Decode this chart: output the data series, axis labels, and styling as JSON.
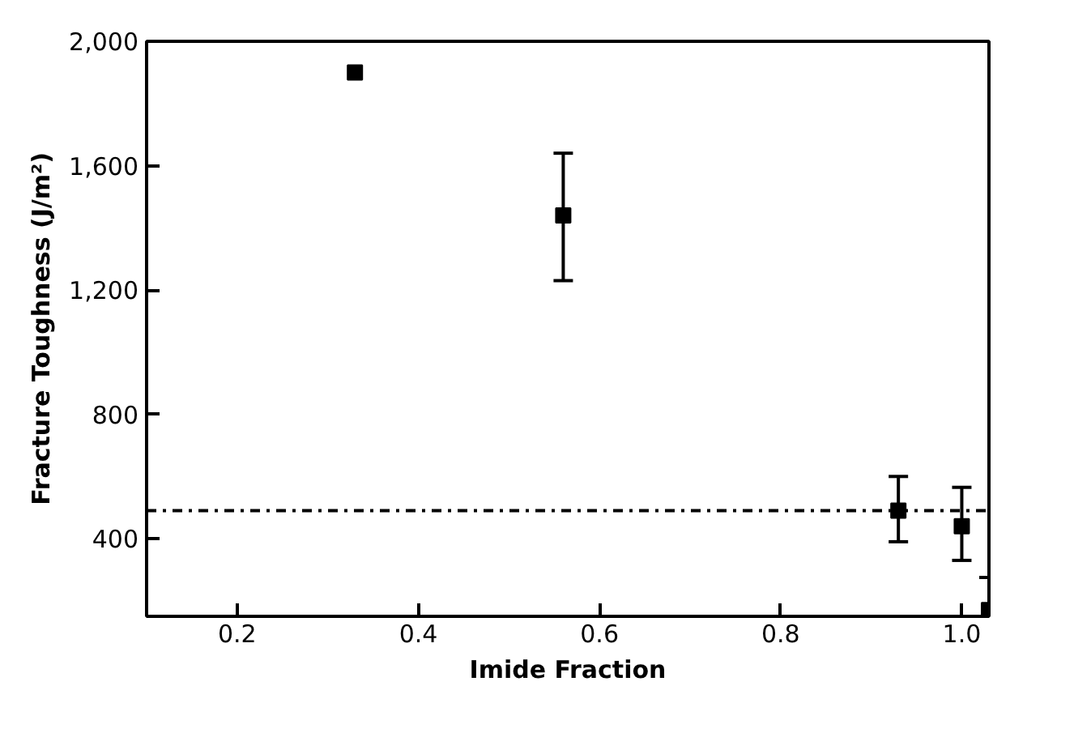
{
  "chart_data": {
    "type": "scatter",
    "xlabel": "Imide Fraction",
    "ylabel": "Fracture Toughness (J/m²)",
    "x": [
      0.33,
      0.56,
      0.93,
      1.0,
      1.03
    ],
    "values": [
      1900,
      1440,
      490,
      440,
      170
    ],
    "errors": [
      null,
      [
        1230,
        1640
      ],
      [
        390,
        600
      ],
      [
        330,
        565
      ],
      [
        150,
        275
      ]
    ],
    "color": "#000000",
    "marker": "square",
    "xlim": [
      0.1,
      1.03
    ],
    "ylim": [
      150,
      2000
    ],
    "xticks": [
      0.2,
      0.4,
      0.6,
      0.8,
      {
        "value": 1.0,
        "label": "1.0"
      }
    ],
    "yticks": [
      400,
      800,
      {
        "value": 1200,
        "label": "1,200"
      },
      {
        "value": 1600,
        "label": "1,600"
      },
      {
        "value": 2000,
        "label": "2,000"
      }
    ],
    "ref_lines": [
      {
        "axis": "y",
        "value": 490,
        "label": null,
        "line_style": "dashdot",
        "color": "#000000"
      }
    ],
    "grid": false
  }
}
